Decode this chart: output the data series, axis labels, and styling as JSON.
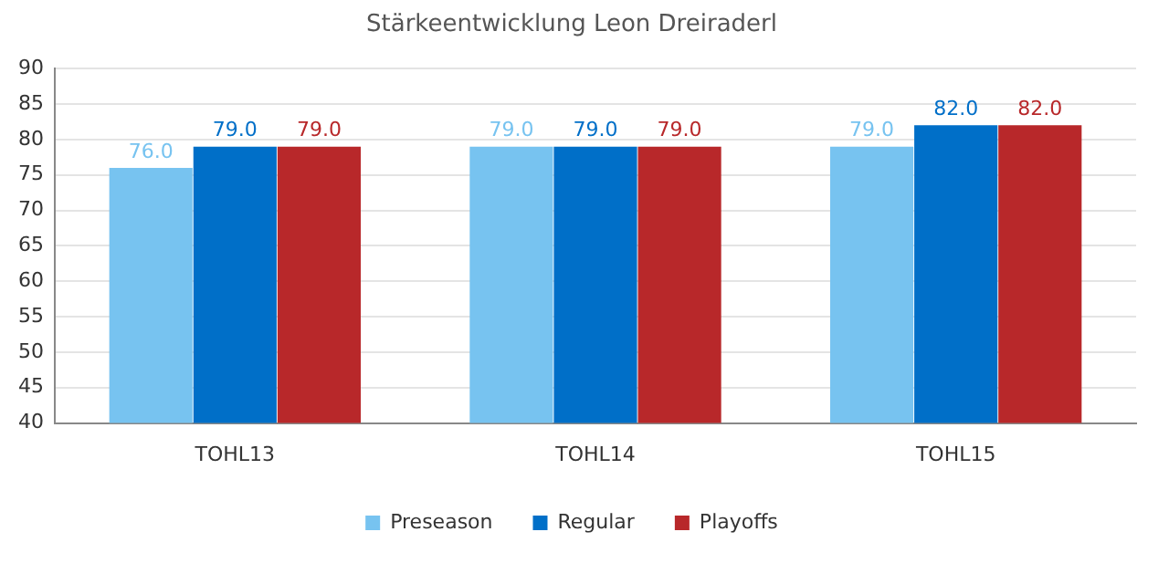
{
  "chart_data": {
    "type": "bar",
    "title": "Stärkeentwicklung Leon Dreiraderl",
    "categories": [
      "TOHL13",
      "TOHL14",
      "TOHL15"
    ],
    "series": [
      {
        "name": "Preseason",
        "color": "#77c3f0",
        "values": [
          76.0,
          79.0,
          79.0
        ],
        "value_labels": [
          "76.0",
          "79.0",
          "79.0"
        ]
      },
      {
        "name": "Regular",
        "color": "#006fc8",
        "values": [
          79.0,
          79.0,
          82.0
        ],
        "value_labels": [
          "79.0",
          "79.0",
          "82.0"
        ]
      },
      {
        "name": "Playoffs",
        "color": "#b8282a",
        "values": [
          79.0,
          79.0,
          82.0
        ],
        "value_labels": [
          "79.0",
          "79.0",
          "82.0"
        ]
      }
    ],
    "ylim": [
      40,
      90
    ],
    "yticks": [
      40,
      45,
      50,
      55,
      60,
      65,
      70,
      75,
      80,
      85,
      90
    ],
    "grid": "y",
    "legend": "bottom"
  }
}
